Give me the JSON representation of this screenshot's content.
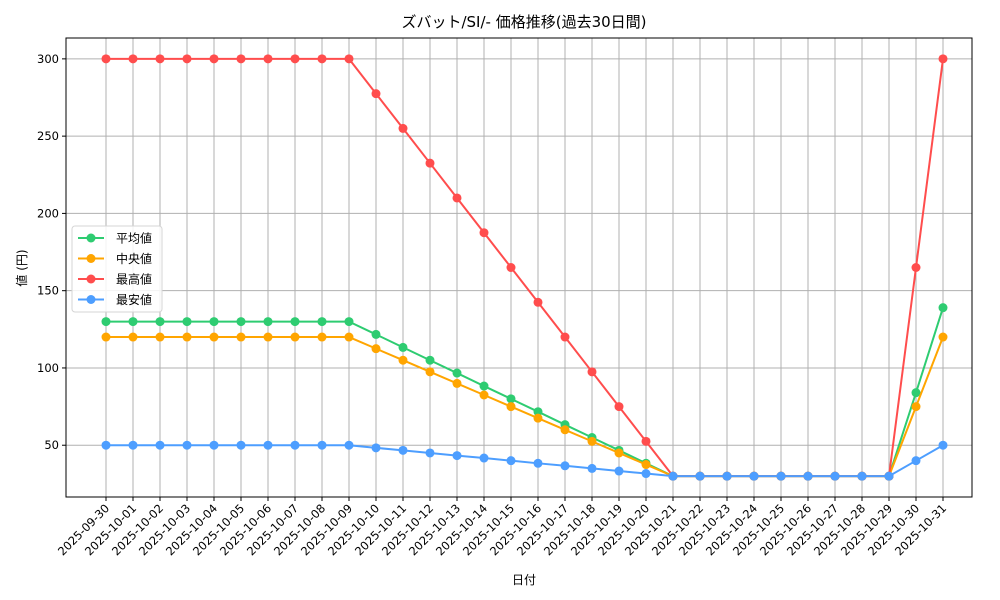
{
  "chart_data": {
    "type": "line",
    "title": "ズバット/SI/- 価格推移(過去30日間)",
    "xlabel": "日付",
    "ylabel": "値 (円)",
    "ylim": [
      16.5,
      313.5
    ],
    "yticks": [
      50,
      100,
      150,
      200,
      250,
      300
    ],
    "grid": true,
    "legend_position": "center left",
    "categories": [
      "2025-09-30",
      "2025-10-01",
      "2025-10-02",
      "2025-10-03",
      "2025-10-04",
      "2025-10-05",
      "2025-10-06",
      "2025-10-07",
      "2025-10-08",
      "2025-10-09",
      "2025-10-10",
      "2025-10-11",
      "2025-10-12",
      "2025-10-13",
      "2025-10-14",
      "2025-10-15",
      "2025-10-16",
      "2025-10-17",
      "2025-10-18",
      "2025-10-19",
      "2025-10-20",
      "2025-10-21",
      "2025-10-22",
      "2025-10-23",
      "2025-10-24",
      "2025-10-25",
      "2025-10-26",
      "2025-10-27",
      "2025-10-28",
      "2025-10-29",
      "2025-10-30",
      "2025-10-31"
    ],
    "series": [
      {
        "name": "平均値",
        "color": "#2ecc71",
        "values": [
          130,
          130,
          130,
          130,
          130,
          130,
          130,
          130,
          130,
          130,
          121.7,
          113.3,
          105,
          96.7,
          88.3,
          80,
          71.7,
          63.3,
          55,
          46.7,
          38.3,
          30,
          30,
          30,
          30,
          30,
          30,
          30,
          30,
          30,
          84,
          139
        ]
      },
      {
        "name": "中央値",
        "color": "#ffa500",
        "values": [
          120,
          120,
          120,
          120,
          120,
          120,
          120,
          120,
          120,
          120,
          112.5,
          105,
          97.5,
          90,
          82.5,
          75,
          67.5,
          60,
          52.5,
          45,
          37.5,
          30,
          30,
          30,
          30,
          30,
          30,
          30,
          30,
          30,
          75,
          120
        ]
      },
      {
        "name": "最高値",
        "color": "#ff4d4d",
        "values": [
          300,
          300,
          300,
          300,
          300,
          300,
          300,
          300,
          300,
          300,
          277.5,
          255,
          232.5,
          210,
          187.5,
          165,
          142.5,
          120,
          97.5,
          75,
          52.5,
          30,
          30,
          30,
          30,
          30,
          30,
          30,
          30,
          30,
          165,
          300
        ]
      },
      {
        "name": "最安値",
        "color": "#4d9eff",
        "values": [
          50,
          50,
          50,
          50,
          50,
          50,
          50,
          50,
          50,
          50,
          48.3,
          46.7,
          45,
          43.3,
          41.7,
          40,
          38.3,
          36.7,
          35,
          33.3,
          31.7,
          30,
          30,
          30,
          30,
          30,
          30,
          30,
          30,
          30,
          40,
          50
        ]
      }
    ]
  }
}
